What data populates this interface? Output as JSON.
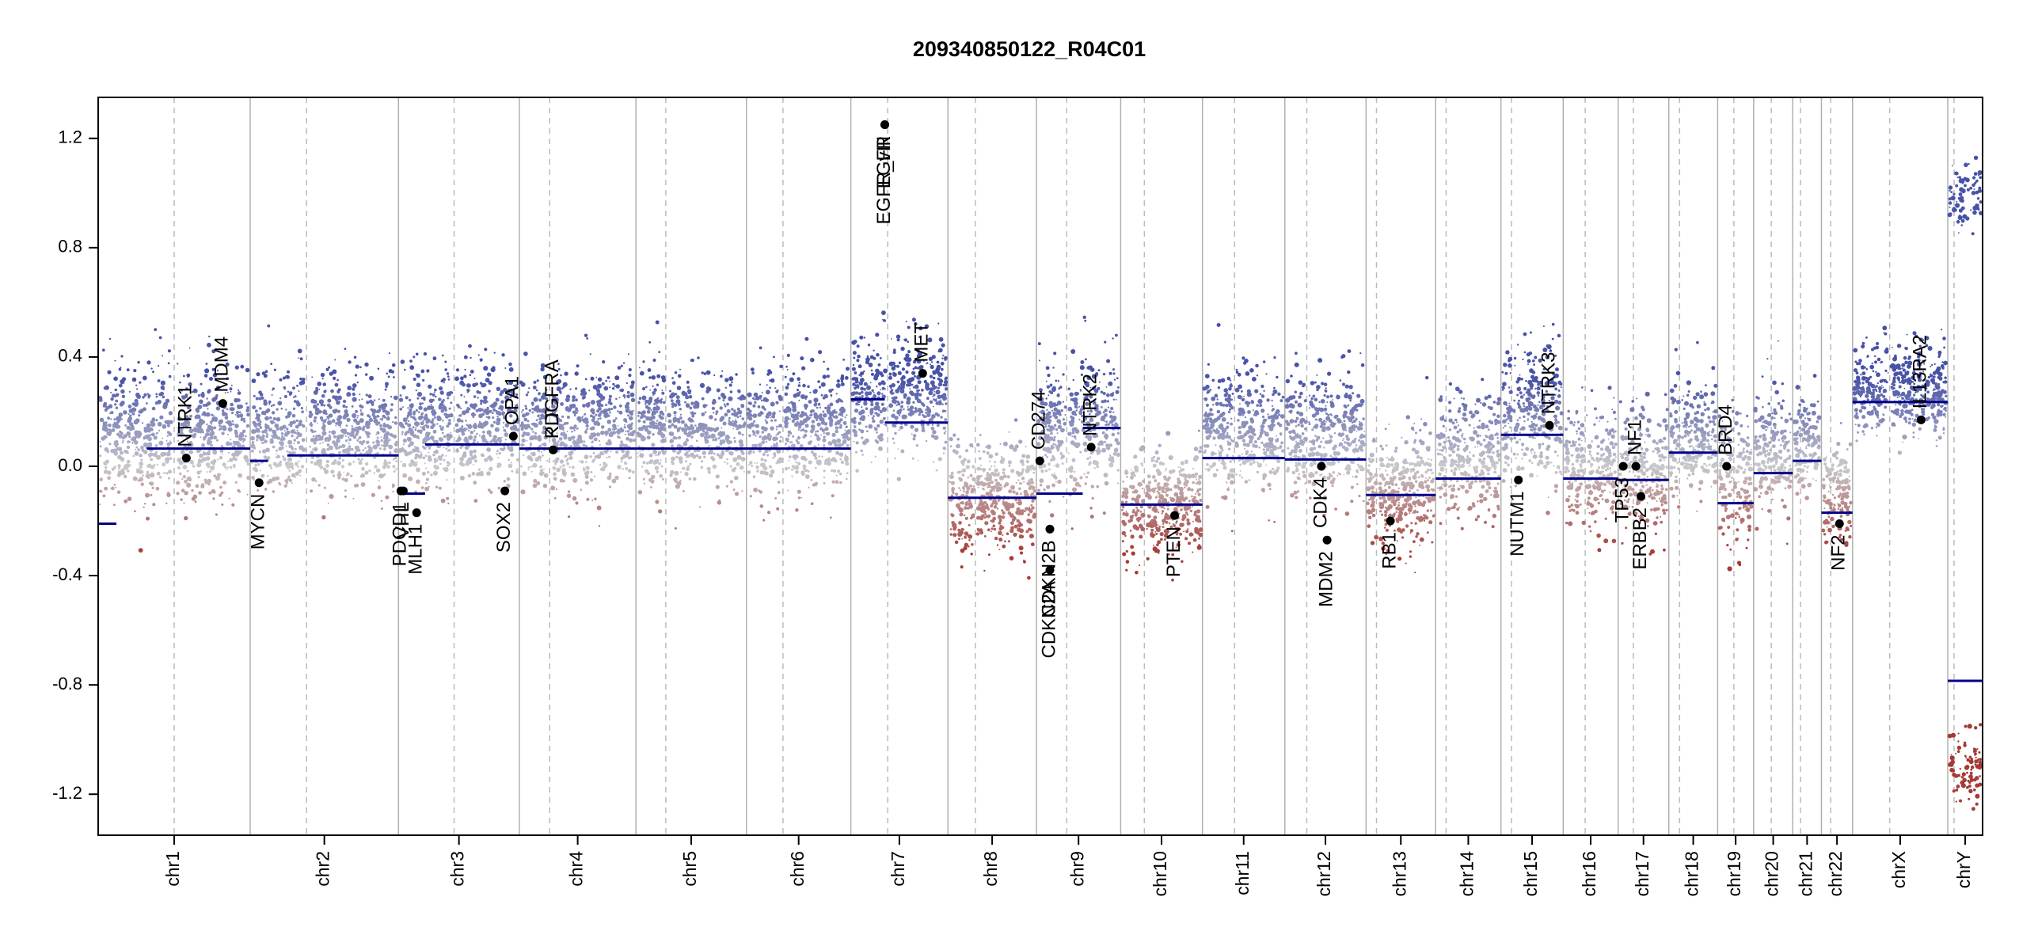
{
  "chart_data": {
    "type": "scatter",
    "title": "209340850122_R04C01",
    "xlabel": "",
    "ylabel": "",
    "ylim": [
      -1.35,
      1.35
    ],
    "yticks": [
      "-1.2",
      "-0.8",
      "-0.4",
      "0.0",
      "0.4",
      "0.8",
      "1.2"
    ],
    "ytick_values": [
      -1.2,
      -0.8,
      -0.4,
      0.0,
      0.4,
      0.8,
      1.2
    ],
    "colors": {
      "gain": "#5059a8",
      "loss": "#a8433d",
      "neutral": "#c0c0c0",
      "segment": "#00008b",
      "gene_point": "#000000",
      "chrom_border": "#b0b0b0",
      "centromere": "#bbbbbb"
    },
    "chromosomes": [
      {
        "name": "chr1",
        "len": 249,
        "cen": 0.5,
        "mean": 0.12,
        "amp": 0.14
      },
      {
        "name": "chr2",
        "len": 243,
        "cen": 0.38,
        "mean": 0.12,
        "amp": 0.12
      },
      {
        "name": "chr3",
        "len": 198,
        "cen": 0.46,
        "mean": 0.15,
        "amp": 0.12
      },
      {
        "name": "chr4",
        "len": 191,
        "cen": 0.26,
        "mean": 0.14,
        "amp": 0.12
      },
      {
        "name": "chr5",
        "len": 181,
        "cen": 0.27,
        "mean": 0.14,
        "amp": 0.12
      },
      {
        "name": "chr6",
        "len": 171,
        "cen": 0.35,
        "mean": 0.14,
        "amp": 0.12
      },
      {
        "name": "chr7",
        "len": 159,
        "cen": 0.38,
        "mean": 0.26,
        "amp": 0.12
      },
      {
        "name": "chr8",
        "len": 145,
        "cen": 0.31,
        "mean": -0.12,
        "amp": 0.11
      },
      {
        "name": "chr9",
        "len": 138,
        "cen": 0.36,
        "mean": 0.15,
        "amp": 0.14
      },
      {
        "name": "chr10",
        "len": 134,
        "cen": 0.29,
        "mean": -0.14,
        "amp": 0.11
      },
      {
        "name": "chr11",
        "len": 135,
        "cen": 0.39,
        "mean": 0.13,
        "amp": 0.12
      },
      {
        "name": "chr12",
        "len": 133,
        "cen": 0.27,
        "mean": 0.12,
        "amp": 0.12
      },
      {
        "name": "chr13",
        "len": 114,
        "cen": 0.15,
        "mean": -0.1,
        "amp": 0.11
      },
      {
        "name": "chr14",
        "len": 107,
        "cen": 0.16,
        "mean": 0.04,
        "amp": 0.12
      },
      {
        "name": "chr15",
        "len": 102,
        "cen": 0.17,
        "mean": 0.2,
        "amp": 0.14
      },
      {
        "name": "chr16",
        "len": 90,
        "cen": 0.4,
        "mean": -0.02,
        "amp": 0.12
      },
      {
        "name": "chr17",
        "len": 83,
        "cen": 0.3,
        "mean": -0.02,
        "amp": 0.12
      },
      {
        "name": "chr18",
        "len": 80,
        "cen": 0.22,
        "mean": 0.1,
        "amp": 0.11
      },
      {
        "name": "chr19",
        "len": 59,
        "cen": 0.45,
        "mean": -0.05,
        "amp": 0.14
      },
      {
        "name": "chr20",
        "len": 64,
        "cen": 0.45,
        "mean": 0.05,
        "amp": 0.12
      },
      {
        "name": "chr21",
        "len": 47,
        "cen": 0.27,
        "mean": 0.08,
        "amp": 0.1
      },
      {
        "name": "chr22",
        "len": 51,
        "cen": 0.3,
        "mean": -0.1,
        "amp": 0.1
      },
      {
        "name": "chrX",
        "len": 156,
        "cen": 0.39,
        "mean": 0.28,
        "amp": 0.09
      },
      {
        "name": "chrY",
        "len": 57,
        "cen": 0.18,
        "mean": 0.0,
        "amp": 0.02
      }
    ],
    "segments": [
      {
        "chr": "chr1",
        "start": 0.0,
        "end": 0.12,
        "value": -0.21
      },
      {
        "chr": "chr1",
        "start": 0.32,
        "end": 1.0,
        "value": 0.065
      },
      {
        "chr": "chr2",
        "start": 0.0,
        "end": 0.12,
        "value": 0.02
      },
      {
        "chr": "chr2",
        "start": 0.25,
        "end": 1.0,
        "value": 0.04
      },
      {
        "chr": "chr3",
        "start": 0.0,
        "end": 0.22,
        "value": -0.1
      },
      {
        "chr": "chr3",
        "start": 0.22,
        "end": 1.0,
        "value": 0.08
      },
      {
        "chr": "chr4",
        "start": 0.0,
        "end": 1.0,
        "value": 0.065
      },
      {
        "chr": "chr5",
        "start": 0.0,
        "end": 1.0,
        "value": 0.065
      },
      {
        "chr": "chr6",
        "start": 0.0,
        "end": 1.0,
        "value": 0.065
      },
      {
        "chr": "chr7",
        "start": 0.0,
        "end": 0.35,
        "value": 0.245
      },
      {
        "chr": "chr7",
        "start": 0.35,
        "end": 1.0,
        "value": 0.16
      },
      {
        "chr": "chr8",
        "start": 0.0,
        "end": 1.0,
        "value": -0.115
      },
      {
        "chr": "chr9",
        "start": 0.0,
        "end": 0.55,
        "value": -0.1
      },
      {
        "chr": "chr9",
        "start": 0.55,
        "end": 1.0,
        "value": 0.14
      },
      {
        "chr": "chr10",
        "start": 0.0,
        "end": 1.0,
        "value": -0.14
      },
      {
        "chr": "chr11",
        "start": 0.0,
        "end": 1.0,
        "value": 0.03
      },
      {
        "chr": "chr12",
        "start": 0.0,
        "end": 1.0,
        "value": 0.025
      },
      {
        "chr": "chr13",
        "start": 0.0,
        "end": 1.0,
        "value": -0.105
      },
      {
        "chr": "chr14",
        "start": 0.0,
        "end": 1.0,
        "value": -0.045
      },
      {
        "chr": "chr15",
        "start": 0.0,
        "end": 1.0,
        "value": 0.115
      },
      {
        "chr": "chr16",
        "start": 0.0,
        "end": 1.0,
        "value": -0.045
      },
      {
        "chr": "chr17",
        "start": 0.0,
        "end": 1.0,
        "value": -0.05
      },
      {
        "chr": "chr18",
        "start": 0.0,
        "end": 1.0,
        "value": 0.05
      },
      {
        "chr": "chr19",
        "start": 0.0,
        "end": 1.0,
        "value": -0.135
      },
      {
        "chr": "chr20",
        "start": 0.0,
        "end": 1.0,
        "value": -0.025
      },
      {
        "chr": "chr21",
        "start": 0.0,
        "end": 1.0,
        "value": 0.02
      },
      {
        "chr": "chr22",
        "start": 0.0,
        "end": 1.0,
        "value": -0.17
      },
      {
        "chr": "chrX",
        "start": 0.0,
        "end": 1.0,
        "value": 0.235
      },
      {
        "chr": "chrY",
        "start": 0.0,
        "end": 1.0,
        "value": -0.785
      }
    ],
    "genes": [
      {
        "name": "NTRK1",
        "chr": "chr1",
        "pos": 0.58,
        "value": 0.03,
        "label_dir": "up"
      },
      {
        "name": "MDM4",
        "chr": "chr1",
        "pos": 0.82,
        "value": 0.23,
        "label_dir": "up"
      },
      {
        "name": "MYCN",
        "chr": "chr2",
        "pos": 0.06,
        "value": -0.06,
        "label_dir": "down"
      },
      {
        "name": "VHL",
        "chr": "chr3",
        "pos": 0.04,
        "value": -0.09,
        "label_dir": "down"
      },
      {
        "name": "PDCD1",
        "chr": "chr3",
        "pos": 0.02,
        "value": -0.09,
        "label_dir": "down"
      },
      {
        "name": "MLH1",
        "chr": "chr3",
        "pos": 0.15,
        "value": -0.17,
        "label_dir": "down"
      },
      {
        "name": "SOX2",
        "chr": "chr3",
        "pos": 0.88,
        "value": -0.09,
        "label_dir": "down"
      },
      {
        "name": "OPA1",
        "chr": "chr3",
        "pos": 0.95,
        "value": 0.11,
        "label_dir": "up"
      },
      {
        "name": "PDGFRA",
        "chr": "chr4",
        "pos": 0.29,
        "value": 0.06,
        "label_dir": "up"
      },
      {
        "name": "KIT",
        "chr": "chr4",
        "pos": 0.29,
        "value": 0.06,
        "label_dir": "up"
      },
      {
        "name": "EGFR",
        "chr": "chr7",
        "pos": 0.35,
        "value": 1.25,
        "label_dir": "down"
      },
      {
        "name": "EGFR_vIII",
        "chr": "chr7",
        "pos": 0.35,
        "value": 1.25,
        "label_dir": "down"
      },
      {
        "name": "MET",
        "chr": "chr7",
        "pos": 0.74,
        "value": 0.34,
        "label_dir": "up"
      },
      {
        "name": "CD274",
        "chr": "chr9",
        "pos": 0.04,
        "value": 0.02,
        "label_dir": "up"
      },
      {
        "name": "CDKN2A",
        "chr": "chr9",
        "pos": 0.16,
        "value": -0.38,
        "label_dir": "down"
      },
      {
        "name": "CDKN2B",
        "chr": "chr9",
        "pos": 0.16,
        "value": -0.23,
        "label_dir": "down"
      },
      {
        "name": "NTRK2",
        "chr": "chr9",
        "pos": 0.65,
        "value": 0.07,
        "label_dir": "up"
      },
      {
        "name": "PTEN",
        "chr": "chr10",
        "pos": 0.66,
        "value": -0.18,
        "label_dir": "down"
      },
      {
        "name": "MDM2",
        "chr": "chr12",
        "pos": 0.52,
        "value": -0.27,
        "label_dir": "down"
      },
      {
        "name": "CDK4",
        "chr": "chr12",
        "pos": 0.45,
        "value": 0.0,
        "label_dir": "down"
      },
      {
        "name": "RB1",
        "chr": "chr13",
        "pos": 0.35,
        "value": -0.2,
        "label_dir": "down"
      },
      {
        "name": "NUTM1",
        "chr": "chr15",
        "pos": 0.28,
        "value": -0.05,
        "label_dir": "down"
      },
      {
        "name": "NTRK3",
        "chr": "chr15",
        "pos": 0.78,
        "value": 0.15,
        "label_dir": "up"
      },
      {
        "name": "TP53",
        "chr": "chr17",
        "pos": 0.1,
        "value": 0.0,
        "label_dir": "down"
      },
      {
        "name": "NF1",
        "chr": "chr17",
        "pos": 0.35,
        "value": 0.0,
        "label_dir": "up"
      },
      {
        "name": "ERBB2",
        "chr": "chr17",
        "pos": 0.45,
        "value": -0.11,
        "label_dir": "down"
      },
      {
        "name": "BRD4",
        "chr": "chr19",
        "pos": 0.25,
        "value": 0.0,
        "label_dir": "up"
      },
      {
        "name": "NF2",
        "chr": "chr22",
        "pos": 0.58,
        "value": -0.21,
        "label_dir": "down"
      },
      {
        "name": "IL13RA2",
        "chr": "chrX",
        "pos": 0.72,
        "value": 0.17,
        "label_dir": "up"
      }
    ]
  }
}
